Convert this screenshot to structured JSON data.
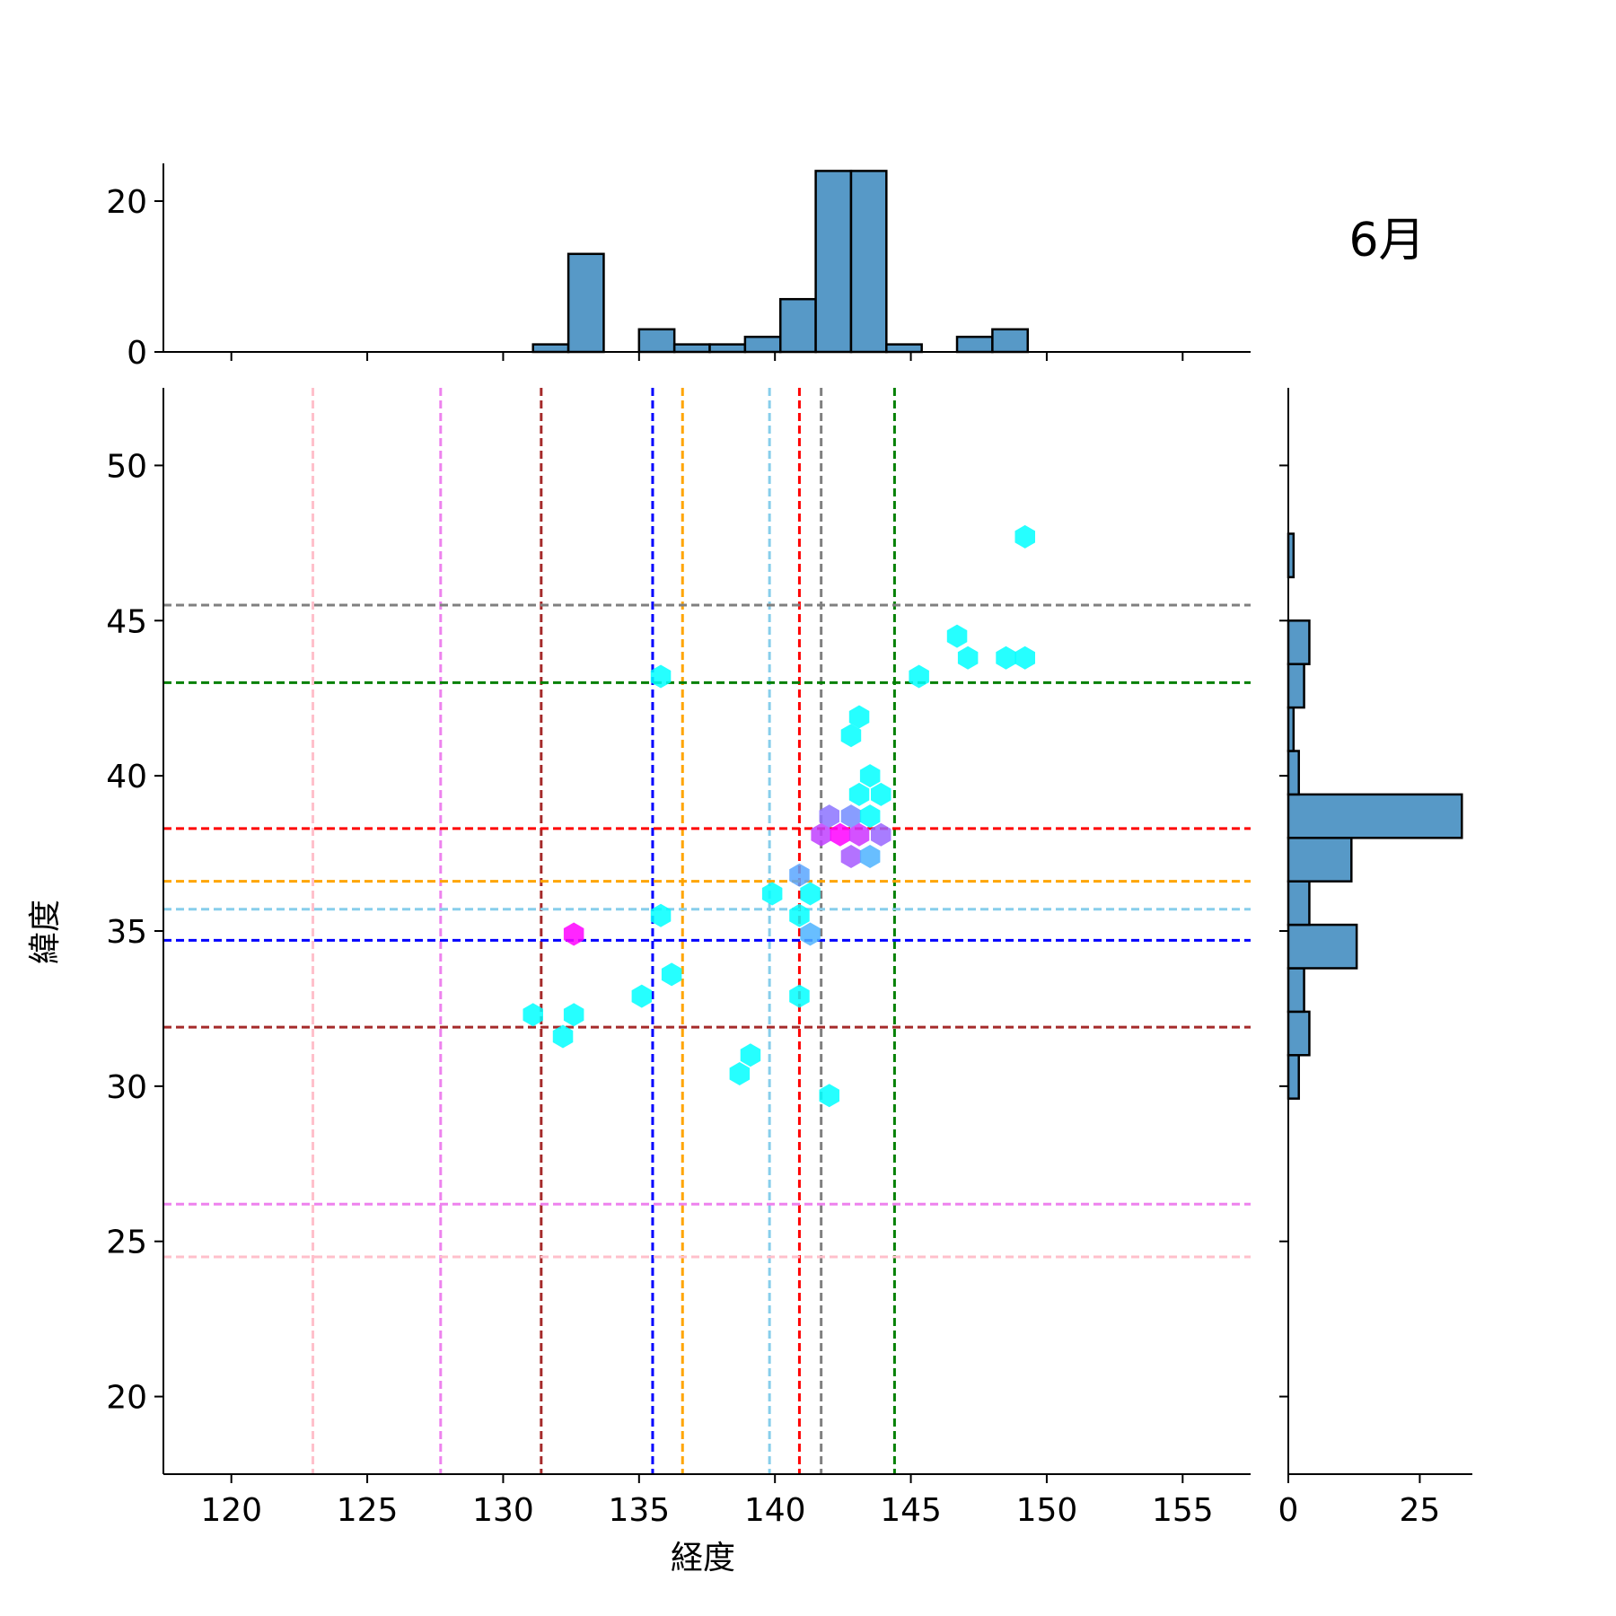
{
  "chart_data": {
    "type": "hexbin_joint",
    "title": "6月",
    "xlabel": "経度",
    "ylabel": "緯度",
    "xlim": [
      117.5,
      157.5
    ],
    "ylim": [
      17.5,
      52.5
    ],
    "xticks": [
      "120",
      "125",
      "130",
      "135",
      "140",
      "145",
      "150",
      "155"
    ],
    "yticks": [
      "20",
      "25",
      "30",
      "35",
      "40",
      "45",
      "50"
    ],
    "hexbins": [
      {
        "x": 131.1,
        "y": 32.3,
        "density": 0.0
      },
      {
        "x": 132.2,
        "y": 31.6,
        "density": 0.0
      },
      {
        "x": 132.6,
        "y": 32.3,
        "density": 0.0
      },
      {
        "x": 132.6,
        "y": 34.9,
        "density": 1.0
      },
      {
        "x": 135.1,
        "y": 32.9,
        "density": 0.0
      },
      {
        "x": 135.8,
        "y": 35.5,
        "density": 0.0
      },
      {
        "x": 135.8,
        "y": 43.2,
        "density": 0.0
      },
      {
        "x": 136.2,
        "y": 33.6,
        "density": 0.0
      },
      {
        "x": 138.7,
        "y": 30.4,
        "density": 0.0
      },
      {
        "x": 139.1,
        "y": 31.0,
        "density": 0.0
      },
      {
        "x": 139.9,
        "y": 36.2,
        "density": 0.0
      },
      {
        "x": 140.9,
        "y": 36.8,
        "density": 0.35
      },
      {
        "x": 140.9,
        "y": 35.5,
        "density": 0.0
      },
      {
        "x": 140.9,
        "y": 32.9,
        "density": 0.0
      },
      {
        "x": 141.3,
        "y": 36.2,
        "density": 0.0
      },
      {
        "x": 141.3,
        "y": 34.9,
        "density": 0.3
      },
      {
        "x": 142.0,
        "y": 29.7,
        "density": 0.0
      },
      {
        "x": 142.0,
        "y": 38.7,
        "density": 0.55
      },
      {
        "x": 141.7,
        "y": 38.1,
        "density": 0.75
      },
      {
        "x": 142.4,
        "y": 38.1,
        "density": 1.0
      },
      {
        "x": 142.8,
        "y": 38.7,
        "density": 0.45
      },
      {
        "x": 142.8,
        "y": 37.4,
        "density": 0.65
      },
      {
        "x": 143.1,
        "y": 38.1,
        "density": 0.8
      },
      {
        "x": 143.5,
        "y": 37.4,
        "density": 0.3
      },
      {
        "x": 143.5,
        "y": 38.7,
        "density": 0.0
      },
      {
        "x": 143.9,
        "y": 38.1,
        "density": 0.6
      },
      {
        "x": 143.1,
        "y": 39.4,
        "density": 0.0
      },
      {
        "x": 143.9,
        "y": 39.4,
        "density": 0.0
      },
      {
        "x": 143.5,
        "y": 40.0,
        "density": 0.0
      },
      {
        "x": 142.8,
        "y": 41.3,
        "density": 0.0
      },
      {
        "x": 143.1,
        "y": 41.9,
        "density": 0.0
      },
      {
        "x": 145.3,
        "y": 43.2,
        "density": 0.0
      },
      {
        "x": 146.7,
        "y": 44.5,
        "density": 0.0
      },
      {
        "x": 147.1,
        "y": 43.8,
        "density": 0.0
      },
      {
        "x": 148.5,
        "y": 43.8,
        "density": 0.0
      },
      {
        "x": 149.2,
        "y": 43.8,
        "density": 0.0
      },
      {
        "x": 149.2,
        "y": 47.7,
        "density": 0.0
      }
    ],
    "reference_lines": {
      "vertical": [
        {
          "x": 123.0,
          "color": "#ffc0cb"
        },
        {
          "x": 127.7,
          "color": "#ee82ee"
        },
        {
          "x": 131.4,
          "color": "#a52a2a"
        },
        {
          "x": 135.5,
          "color": "#0000ff"
        },
        {
          "x": 136.6,
          "color": "#ffa500"
        },
        {
          "x": 139.8,
          "color": "#87ceeb"
        },
        {
          "x": 140.9,
          "color": "#ff0000"
        },
        {
          "x": 141.7,
          "color": "#808080"
        },
        {
          "x": 144.4,
          "color": "#008000"
        }
      ],
      "horizontal": [
        {
          "y": 45.5,
          "color": "#808080"
        },
        {
          "y": 43.0,
          "color": "#008000"
        },
        {
          "y": 38.3,
          "color": "#ff0000"
        },
        {
          "y": 36.6,
          "color": "#ffa500"
        },
        {
          "y": 35.7,
          "color": "#87ceeb"
        },
        {
          "y": 34.7,
          "color": "#0000ff"
        },
        {
          "y": 31.9,
          "color": "#a52a2a"
        },
        {
          "y": 26.2,
          "color": "#ee82ee"
        },
        {
          "y": 24.5,
          "color": "#ffc0cb"
        }
      ]
    },
    "top_hist": {
      "yticks": [
        "0",
        "20"
      ],
      "ylim": [
        0,
        25
      ],
      "bins": [
        {
          "x0": 131.1,
          "x1": 132.4,
          "count": 1
        },
        {
          "x0": 132.4,
          "x1": 133.7,
          "count": 13
        },
        {
          "x0": 135.0,
          "x1": 136.3,
          "count": 3
        },
        {
          "x0": 136.3,
          "x1": 137.6,
          "count": 1
        },
        {
          "x0": 137.6,
          "x1": 138.9,
          "count": 1
        },
        {
          "x0": 138.9,
          "x1": 140.2,
          "count": 2
        },
        {
          "x0": 140.2,
          "x1": 141.5,
          "count": 7
        },
        {
          "x0": 141.5,
          "x1": 142.8,
          "count": 24
        },
        {
          "x0": 142.8,
          "x1": 144.1,
          "count": 24
        },
        {
          "x0": 144.1,
          "x1": 145.4,
          "count": 1
        },
        {
          "x0": 146.7,
          "x1": 148.0,
          "count": 2
        },
        {
          "x0": 148.0,
          "x1": 149.3,
          "count": 3
        }
      ]
    },
    "right_hist": {
      "xticks": [
        "0",
        "25"
      ],
      "xlim": [
        0,
        35
      ],
      "bins": [
        {
          "y0": 29.6,
          "y1": 31.0,
          "count": 2
        },
        {
          "y0": 31.0,
          "y1": 32.4,
          "count": 4
        },
        {
          "y0": 32.4,
          "y1": 33.8,
          "count": 3
        },
        {
          "y0": 33.8,
          "y1": 35.2,
          "count": 13
        },
        {
          "y0": 35.2,
          "y1": 36.6,
          "count": 4
        },
        {
          "y0": 36.6,
          "y1": 38.0,
          "count": 12
        },
        {
          "y0": 38.0,
          "y1": 39.4,
          "count": 33
        },
        {
          "y0": 39.4,
          "y1": 40.8,
          "count": 2
        },
        {
          "y0": 40.8,
          "y1": 42.2,
          "count": 1
        },
        {
          "y0": 42.2,
          "y1": 43.6,
          "count": 3
        },
        {
          "y0": 43.6,
          "y1": 45.0,
          "count": 4
        },
        {
          "y0": 46.4,
          "y1": 47.8,
          "count": 1
        }
      ]
    },
    "colors": {
      "hist_fill": "#5799c7",
      "hex_low": "#00ffff",
      "hex_high": "#ff00ff"
    }
  }
}
